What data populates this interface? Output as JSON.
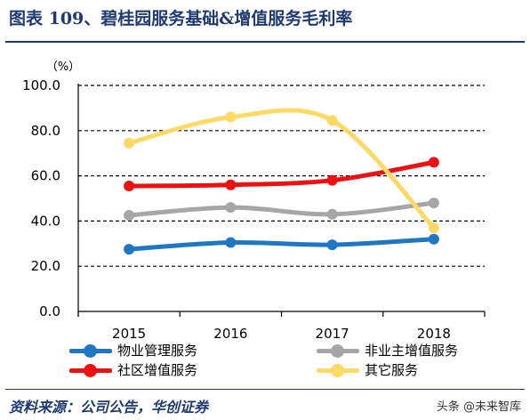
{
  "header": {
    "title": "图表 109、碧桂园服务基础&增值服务毛利率"
  },
  "footer": {
    "source": "资料来源：公司公告，华创证券",
    "watermark": "头条 @未来智库"
  },
  "chart_data": {
    "type": "line",
    "title": "图表 109、碧桂园服务基础&增值服务毛利率",
    "unit_label": "（%）",
    "xlabel": "",
    "ylabel": "",
    "categories": [
      "2015",
      "2016",
      "2017",
      "2018"
    ],
    "ylim": [
      0,
      100
    ],
    "yticks": [
      "0.0",
      "20.0",
      "40.0",
      "60.0",
      "80.0",
      "100.0"
    ],
    "grid": true,
    "legend_position": "bottom",
    "series": [
      {
        "name": "物业管理服务",
        "color": "#1f77c4",
        "values": [
          27.5,
          30.5,
          29.5,
          32.0
        ]
      },
      {
        "name": "非业主增值服务",
        "color": "#a6a6a6",
        "values": [
          42.5,
          46.0,
          43.0,
          48.0
        ]
      },
      {
        "name": "社区增值服务",
        "color": "#ee1111",
        "values": [
          55.5,
          56.0,
          58.0,
          66.0
        ]
      },
      {
        "name": "其它服务",
        "color": "#ffd966",
        "values": [
          74.5,
          86.0,
          84.5,
          37.0
        ]
      }
    ]
  }
}
